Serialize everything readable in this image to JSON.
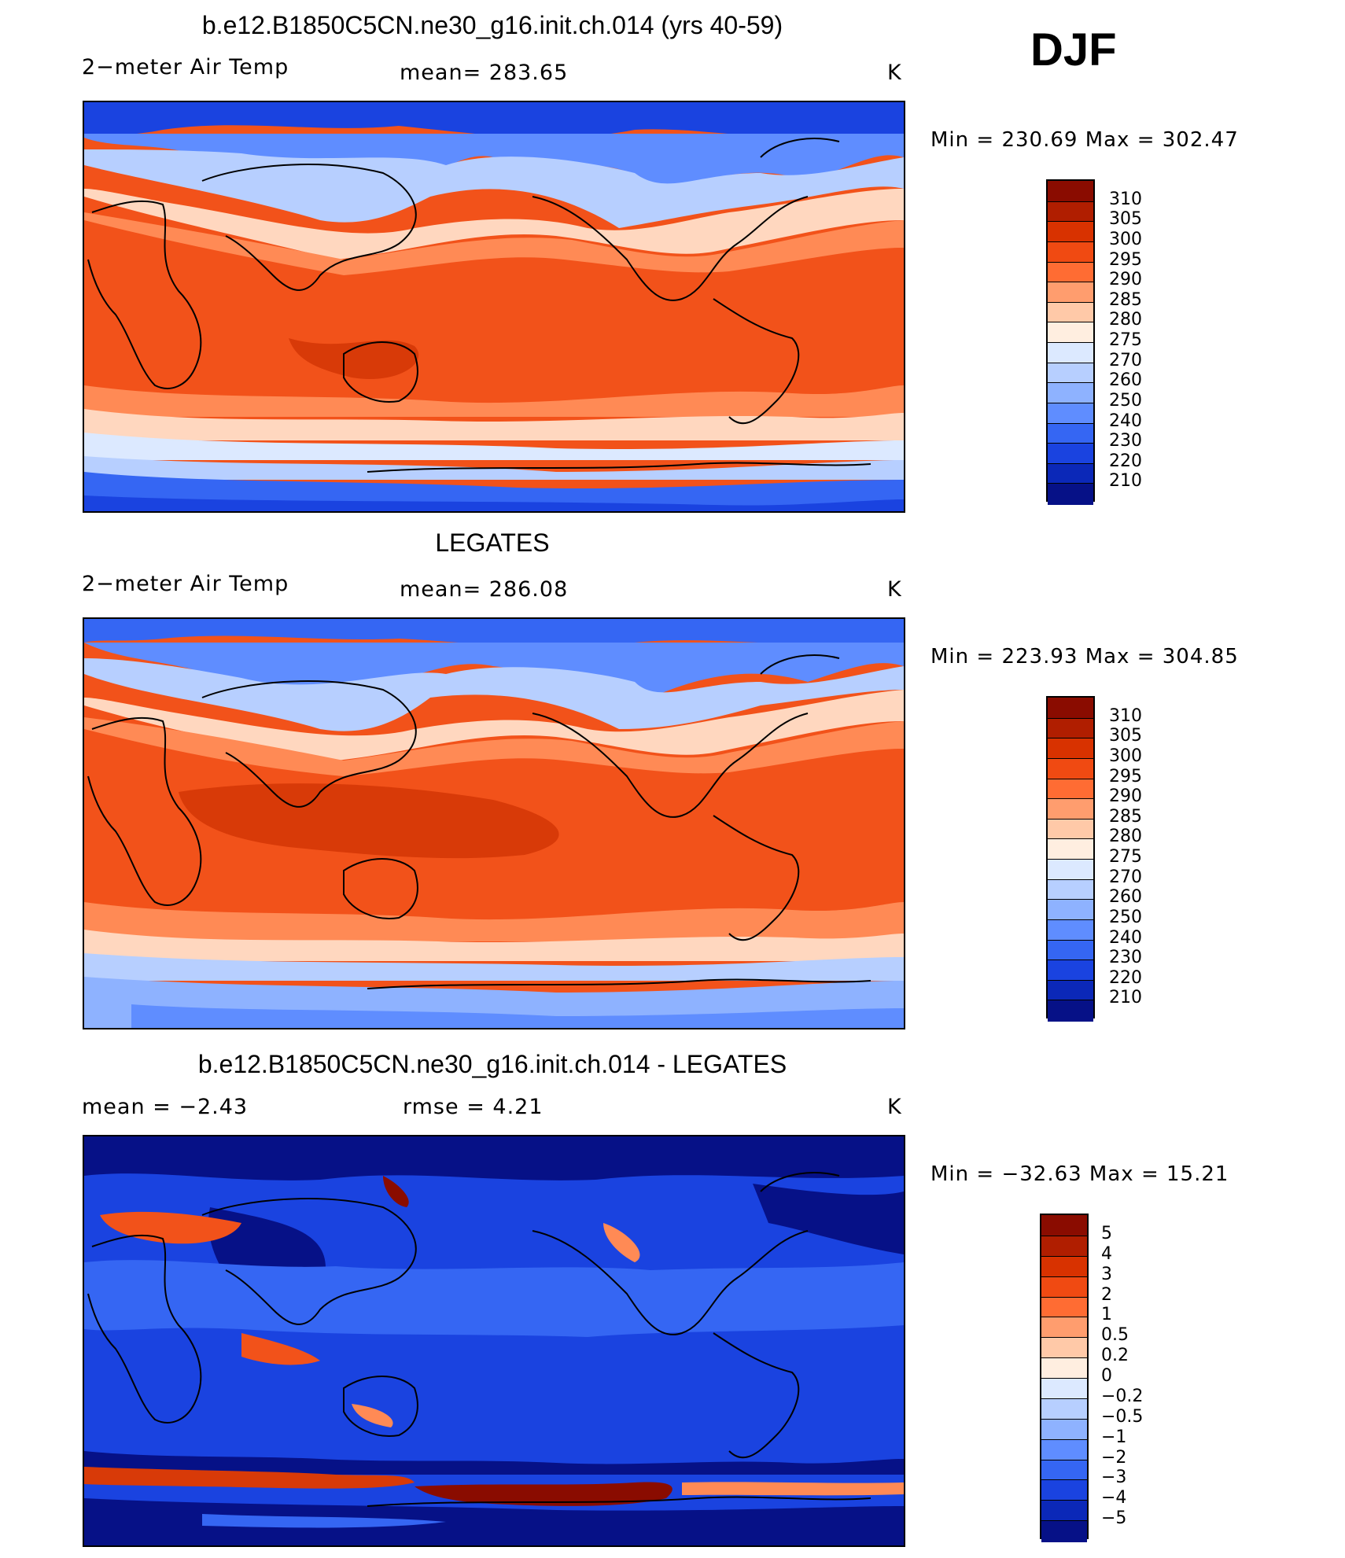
{
  "season": "DJF",
  "panels": [
    {
      "title": "b.e12.B1850C5CN.ne30_g16.init.ch.014 (yrs 40-59)",
      "left": "2−meter Air Temp",
      "middle": "mean=  283.65",
      "right": "K",
      "minmax": "Min  =  230.69  Max  =  302.47"
    },
    {
      "title": "LEGATES",
      "left": "2−meter Air Temp",
      "middle": "mean=  286.08",
      "right": "K",
      "minmax": "Min  =  223.93  Max  =  304.85"
    },
    {
      "title": "b.e12.B1850C5CN.ne30_g16.init.ch.014 - LEGATES",
      "left": "mean  =    −2.43",
      "middle": "rmse  =     4.21",
      "right": "K",
      "minmax": "Min  =  −32.63  Max  =    15.21"
    }
  ],
  "colorbars": {
    "temp": {
      "labels": [
        "310",
        "305",
        "300",
        "295",
        "290",
        "285",
        "280",
        "275",
        "270",
        "260",
        "250",
        "240",
        "230",
        "220",
        "210"
      ],
      "colors": [
        "#8a0c00",
        "#b01e00",
        "#d83200",
        "#f04a12",
        "#ff6c33",
        "#ff9d6e",
        "#ffc9a8",
        "#ffeee0",
        "#dce9ff",
        "#b7cfff",
        "#8eb2ff",
        "#5f8dff",
        "#3566f3",
        "#1a43e0",
        "#0b28b8",
        "#061187"
      ]
    },
    "diff": {
      "labels": [
        "5",
        "4",
        "3",
        "2",
        "1",
        "0.5",
        "0.2",
        "0",
        "−0.2",
        "−0.5",
        "−1",
        "−2",
        "−3",
        "−4",
        "−5"
      ],
      "colors": [
        "#8a0c00",
        "#b01e00",
        "#d83200",
        "#f04a12",
        "#ff6c33",
        "#ff9d6e",
        "#ffc9a8",
        "#ffeee0",
        "#dce9ff",
        "#b7cfff",
        "#8eb2ff",
        "#5f8dff",
        "#3566f3",
        "#1a43e0",
        "#0b28b8",
        "#061187"
      ]
    }
  },
  "map_legend": {
    "colors": {
      "hot": "#d83a08",
      "warm": "#f2521a",
      "mild": "#ff8a55",
      "cool": "#ffd7bf",
      "cold": "#b7cfff",
      "frigid": "#3566f3",
      "polar": "#1a43e0",
      "deep": "#061187"
    }
  }
}
